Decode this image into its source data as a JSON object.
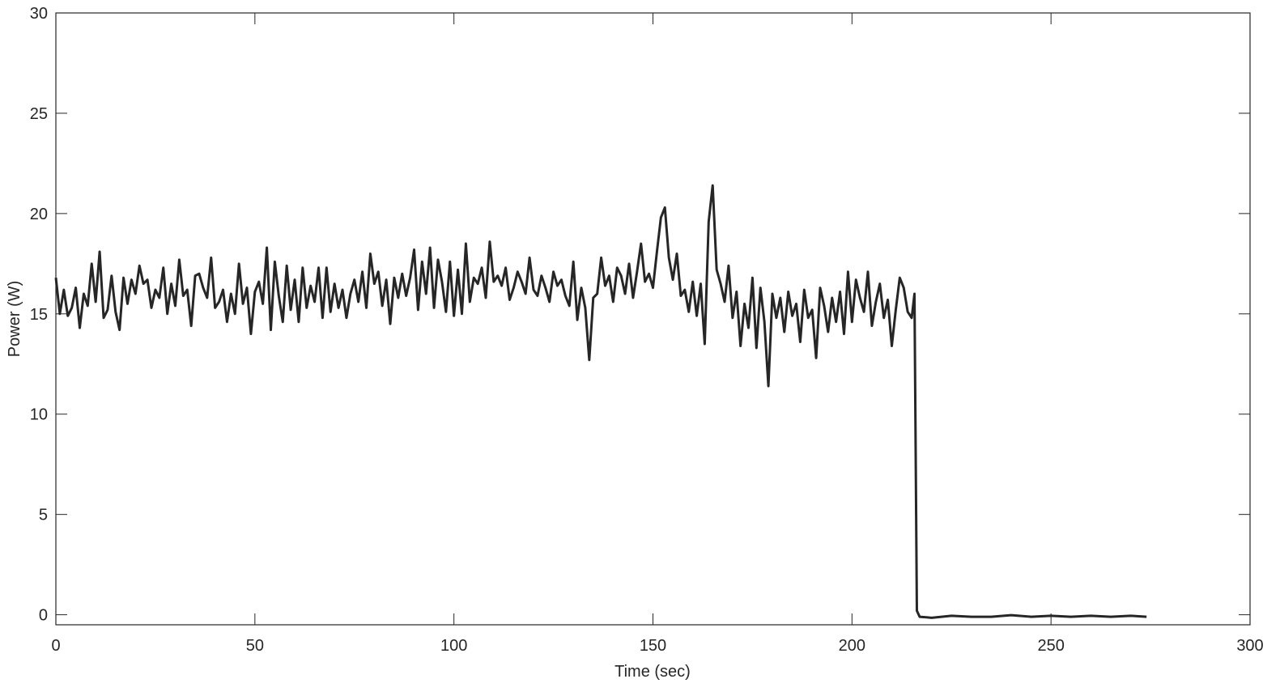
{
  "chart_data": {
    "type": "line",
    "xlabel": "Time (sec)",
    "ylabel": "Power (W)",
    "xlim": [
      0,
      300
    ],
    "xticks": [
      0,
      50,
      100,
      150,
      200,
      250,
      300
    ],
    "ylim": [
      -0.5,
      30
    ],
    "yticks": [
      0,
      5,
      10,
      15,
      20,
      25,
      30
    ],
    "grid": false,
    "x": [
      0,
      1,
      2,
      3,
      4,
      5,
      6,
      7,
      8,
      9,
      10,
      11,
      12,
      13,
      14,
      15,
      16,
      17,
      18,
      19,
      20,
      21,
      22,
      23,
      24,
      25,
      26,
      27,
      28,
      29,
      30,
      31,
      32,
      33,
      34,
      35,
      36,
      37,
      38,
      39,
      40,
      41,
      42,
      43,
      44,
      45,
      46,
      47,
      48,
      49,
      50,
      51,
      52,
      53,
      54,
      55,
      56,
      57,
      58,
      59,
      60,
      61,
      62,
      63,
      64,
      65,
      66,
      67,
      68,
      69,
      70,
      71,
      72,
      73,
      74,
      75,
      76,
      77,
      78,
      79,
      80,
      81,
      82,
      83,
      84,
      85,
      86,
      87,
      88,
      89,
      90,
      91,
      92,
      93,
      94,
      95,
      96,
      97,
      98,
      99,
      100,
      101,
      102,
      103,
      104,
      105,
      106,
      107,
      108,
      109,
      110,
      111,
      112,
      113,
      114,
      115,
      116,
      117,
      118,
      119,
      120,
      121,
      122,
      123,
      124,
      125,
      126,
      127,
      128,
      129,
      130,
      131,
      132,
      133,
      134,
      135,
      136,
      137,
      138,
      139,
      140,
      141,
      142,
      143,
      144,
      145,
      146,
      147,
      148,
      149,
      150,
      151,
      152,
      153,
      154,
      155,
      156,
      157,
      158,
      159,
      160,
      161,
      162,
      163,
      164,
      165,
      166,
      167,
      168,
      169,
      170,
      171,
      172,
      173,
      174,
      175,
      176,
      177,
      178,
      179,
      180,
      181,
      182,
      183,
      184,
      185,
      186,
      187,
      188,
      189,
      190,
      191,
      192,
      193,
      194,
      195,
      196,
      197,
      198,
      199,
      200,
      201,
      202,
      203,
      204,
      205,
      206,
      207,
      208,
      209,
      210,
      211,
      212,
      213,
      214,
      215,
      215.7,
      216.3,
      217,
      220,
      225,
      230,
      235,
      240,
      245,
      250,
      255,
      260,
      265,
      270,
      274
    ],
    "series": [
      {
        "color": "#262626",
        "values": [
          16.8,
          15.0,
          16.2,
          14.9,
          15.3,
          16.3,
          14.3,
          16.0,
          15.4,
          17.5,
          15.6,
          18.1,
          14.8,
          15.2,
          16.9,
          15.1,
          14.2,
          16.8,
          15.5,
          16.7,
          16.0,
          17.4,
          16.5,
          16.7,
          15.3,
          16.2,
          15.8,
          17.3,
          15.0,
          16.5,
          15.4,
          17.7,
          15.9,
          16.2,
          14.4,
          16.9,
          17.0,
          16.3,
          15.8,
          17.8,
          15.3,
          15.6,
          16.2,
          14.6,
          16.0,
          15.0,
          17.5,
          15.5,
          16.3,
          14.0,
          16.1,
          16.6,
          15.5,
          18.3,
          14.2,
          17.6,
          15.9,
          14.6,
          17.4,
          15.2,
          16.7,
          14.6,
          17.3,
          15.3,
          16.4,
          15.6,
          17.3,
          14.8,
          17.3,
          15.1,
          16.5,
          15.3,
          16.2,
          14.8,
          16.0,
          16.7,
          15.6,
          17.1,
          15.3,
          18.0,
          16.5,
          17.1,
          15.4,
          16.7,
          14.5,
          16.8,
          15.8,
          17.0,
          15.9,
          16.8,
          18.2,
          15.2,
          17.6,
          16.0,
          18.3,
          15.3,
          17.7,
          16.6,
          15.1,
          17.6,
          14.9,
          17.2,
          15.0,
          18.5,
          15.6,
          16.8,
          16.5,
          17.3,
          15.8,
          18.6,
          16.6,
          16.9,
          16.4,
          17.3,
          15.7,
          16.3,
          17.1,
          16.6,
          16.0,
          17.8,
          16.2,
          15.9,
          16.9,
          16.3,
          15.6,
          17.1,
          16.4,
          16.7,
          15.9,
          15.4,
          17.6,
          14.7,
          16.3,
          15.3,
          12.7,
          15.8,
          16.0,
          17.8,
          16.4,
          16.9,
          15.6,
          17.3,
          16.9,
          16.0,
          17.5,
          15.8,
          17.1,
          18.5,
          16.6,
          17.0,
          16.3,
          18.1,
          19.8,
          20.3,
          17.8,
          16.7,
          18.0,
          15.9,
          16.2,
          15.1,
          16.6,
          14.9,
          16.5,
          13.5,
          19.6,
          21.4,
          17.2,
          16.5,
          15.6,
          17.4,
          14.8,
          16.1,
          13.4,
          15.5,
          14.3,
          16.8,
          13.3,
          16.3,
          14.6,
          11.4,
          16.0,
          14.8,
          15.8,
          14.1,
          16.1,
          14.9,
          15.5,
          13.6,
          16.2,
          14.8,
          15.2,
          12.8,
          16.3,
          15.4,
          14.1,
          15.8,
          14.6,
          16.1,
          14.0,
          17.1,
          14.6,
          16.7,
          15.8,
          15.1,
          17.1,
          14.4,
          15.6,
          16.5,
          14.8,
          15.7,
          13.4,
          15.2,
          16.8,
          16.3,
          15.1,
          14.8,
          16.0,
          0.2,
          -0.1,
          -0.15,
          -0.05,
          -0.1,
          -0.1,
          -0.02,
          -0.1,
          -0.05,
          -0.1,
          -0.05,
          -0.1,
          -0.05,
          -0.1
        ]
      }
    ]
  }
}
